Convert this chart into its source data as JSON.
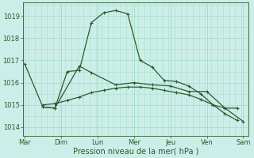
{
  "xlabel": "Pression niveau de la mer( hPa )",
  "background_color": "#cceee8",
  "grid_color": "#aaddcc",
  "line_color": "#2d5a2d",
  "ylim": [
    1013.6,
    1019.6
  ],
  "xlim": [
    -0.05,
    6.15
  ],
  "x_labels": [
    "Mar",
    "Dim",
    "Lun",
    "Mer",
    "Jeu",
    "Ven",
    "Sam"
  ],
  "x_tick_pos": [
    0,
    1,
    2,
    3,
    4,
    5,
    6
  ],
  "yticks": [
    1014,
    1015,
    1016,
    1017,
    1018,
    1019
  ],
  "series": [
    {
      "x": [
        0.0,
        0.5,
        0.83,
        1.5,
        1.83,
        2.5,
        3.0,
        3.5,
        4.0,
        4.5,
        5.0,
        5.5,
        6.0
      ],
      "y": [
        1016.85,
        1014.9,
        1014.85,
        1016.75,
        1016.45,
        1015.9,
        1016.0,
        1015.9,
        1015.85,
        1015.6,
        1015.6,
        1014.85,
        1014.25
      ]
    },
    {
      "x": [
        0.5,
        0.83,
        1.17,
        1.5,
        1.83,
        2.17,
        2.5,
        2.83,
        3.17,
        3.5,
        3.83,
        4.17,
        4.5,
        4.83,
        5.17,
        5.5,
        5.83
      ],
      "y": [
        1014.9,
        1014.85,
        1016.5,
        1016.55,
        1018.7,
        1019.15,
        1019.25,
        1019.1,
        1017.0,
        1016.7,
        1016.1,
        1016.05,
        1015.85,
        1015.5,
        1015.0,
        1014.85,
        1014.85
      ]
    },
    {
      "x": [
        0.5,
        0.83,
        1.17,
        1.5,
        1.83,
        2.17,
        2.5,
        2.83,
        3.17,
        3.5,
        3.83,
        4.17,
        4.5,
        4.83,
        5.17,
        5.5,
        5.83
      ],
      "y": [
        1015.0,
        1015.05,
        1015.2,
        1015.35,
        1015.55,
        1015.65,
        1015.75,
        1015.8,
        1015.8,
        1015.75,
        1015.65,
        1015.55,
        1015.45,
        1015.25,
        1015.0,
        1014.6,
        1014.3
      ]
    }
  ],
  "label_fontsize": 6.0,
  "xlabel_fontsize": 7.0
}
